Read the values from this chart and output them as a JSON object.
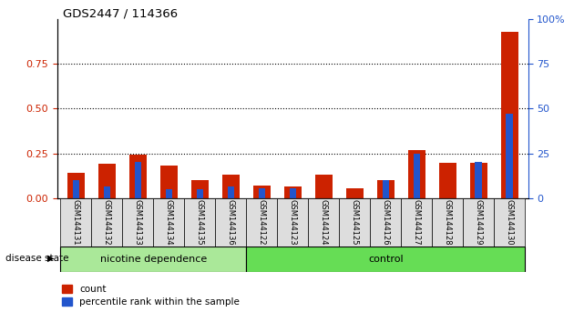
{
  "title": "GDS2447 / 114366",
  "samples": [
    "GSM144131",
    "GSM144132",
    "GSM144133",
    "GSM144134",
    "GSM144135",
    "GSM144136",
    "GSM144122",
    "GSM144123",
    "GSM144124",
    "GSM144125",
    "GSM144126",
    "GSM144127",
    "GSM144128",
    "GSM144129",
    "GSM144130"
  ],
  "count_values": [
    0.14,
    0.19,
    0.245,
    0.18,
    0.1,
    0.13,
    0.07,
    0.065,
    0.13,
    0.055,
    0.1,
    0.27,
    0.195,
    0.195,
    0.93
  ],
  "percentile_values": [
    0.1,
    0.065,
    0.2,
    0.05,
    0.05,
    0.065,
    0.055,
    0.055,
    0.0,
    0.0,
    0.1,
    0.25,
    0.0,
    0.2,
    0.47
  ],
  "group1_label": "nicotine dependence",
  "group2_label": "control",
  "group1_count": 6,
  "group2_count": 9,
  "legend_count_label": "count",
  "legend_percentile_label": "percentile rank within the sample",
  "ylim_left": [
    0,
    1.0
  ],
  "ylim_right": [
    0,
    100
  ],
  "yticks_left": [
    0,
    0.25,
    0.5,
    0.75
  ],
  "yticks_right": [
    0,
    25,
    50,
    75,
    100
  ],
  "bar_color_count": "#cc2200",
  "bar_color_percentile": "#2255cc",
  "group1_color": "#aae899",
  "group2_color": "#66dd55",
  "sample_box_color": "#dddddd",
  "tick_label_color_left": "#cc2200",
  "tick_label_color_right": "#2255cc",
  "bg_color": "#ffffff",
  "disease_state_label": "disease state",
  "right_ytick_labels": [
    "0",
    "25",
    "50",
    "75",
    "100%"
  ]
}
